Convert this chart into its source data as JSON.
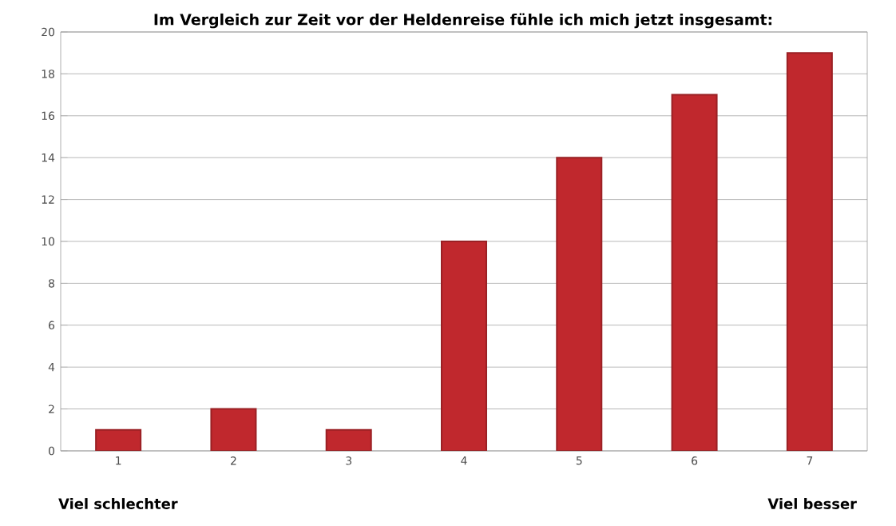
{
  "chart_data": {
    "type": "bar",
    "title": "Im Vergleich zur Zeit vor der Heldenreise fühle ich mich jetzt insgesamt:",
    "categories": [
      "1",
      "2",
      "3",
      "4",
      "5",
      "6",
      "7"
    ],
    "values": [
      1,
      2,
      1,
      10,
      14,
      17,
      19
    ],
    "color": "#c0282d",
    "ylim": [
      0,
      20
    ],
    "yticks": [
      0,
      2,
      4,
      6,
      8,
      10,
      12,
      14,
      16,
      18,
      20
    ],
    "grid": "y",
    "annotations": [
      "Viel schlechter",
      "Viel besser"
    ]
  }
}
